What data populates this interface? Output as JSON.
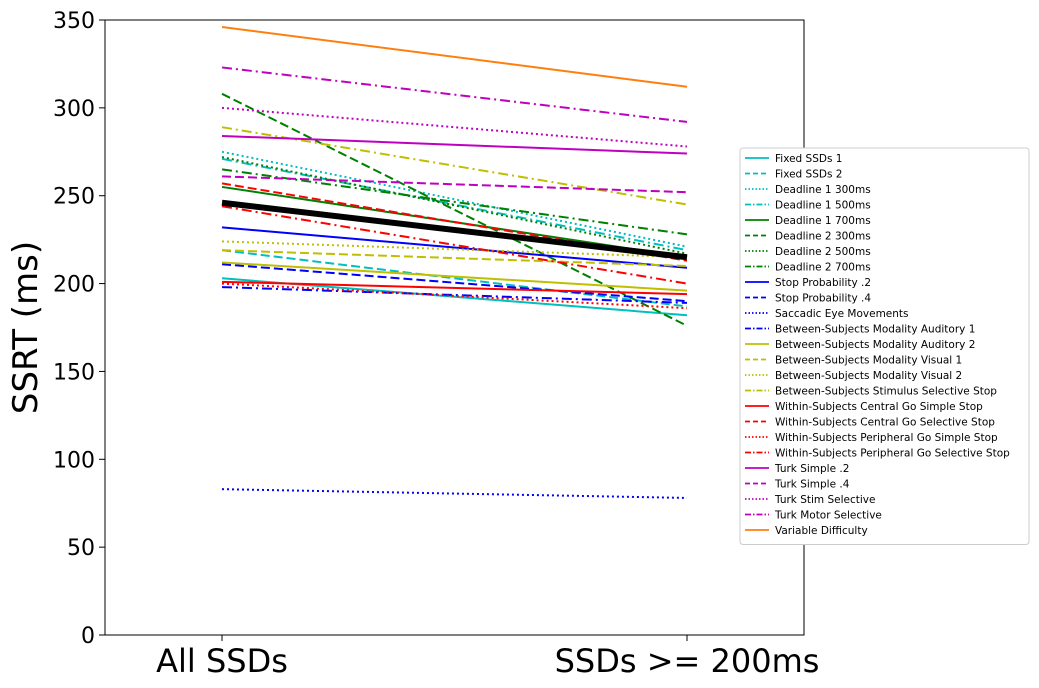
{
  "chart_data": {
    "type": "line",
    "title": "",
    "xlabel": "",
    "ylabel": "SSRT (ms)",
    "categories": [
      "All SSDs",
      "SSDs >= 200ms"
    ],
    "ylim": [
      0,
      350
    ],
    "yticks": [
      "0",
      "50",
      "100",
      "150",
      "200",
      "250",
      "300",
      "350"
    ],
    "grid": false,
    "legend_position": "right",
    "series": [
      {
        "name": "Fixed SSDs 1",
        "values": [
          203,
          182
        ],
        "color": "#00bfbf",
        "dash": "solid"
      },
      {
        "name": "Fixed SSDs 2",
        "values": [
          219,
          187
        ],
        "color": "#00bfbf",
        "dash": "dashed"
      },
      {
        "name": "Deadline 1 300ms",
        "values": [
          275,
          221
        ],
        "color": "#00bfbf",
        "dash": "dotted"
      },
      {
        "name": "Deadline 1 500ms",
        "values": [
          271,
          219
        ],
        "color": "#00bfbf",
        "dash": "dashdot"
      },
      {
        "name": "Deadline 1 700ms",
        "values": [
          255,
          215
        ],
        "color": "#008000",
        "dash": "solid"
      },
      {
        "name": "Deadline 2 300ms",
        "values": [
          308,
          176
        ],
        "color": "#008000",
        "dash": "dashed"
      },
      {
        "name": "Deadline 2 500ms",
        "values": [
          272,
          217
        ],
        "color": "#008000",
        "dash": "dotted"
      },
      {
        "name": "Deadline 2 700ms",
        "values": [
          265,
          228
        ],
        "color": "#008000",
        "dash": "dashdot"
      },
      {
        "name": "Stop Probability .2",
        "values": [
          232,
          209
        ],
        "color": "#0000ff",
        "dash": "solid"
      },
      {
        "name": "Stop Probability .4",
        "values": [
          211,
          190
        ],
        "color": "#0000ff",
        "dash": "dashed"
      },
      {
        "name": "Saccadic Eye Movements",
        "values": [
          83,
          78
        ],
        "color": "#0000ff",
        "dash": "dotted"
      },
      {
        "name": "Between-Subjects Modality Auditory 1",
        "values": [
          198,
          189
        ],
        "color": "#0000ff",
        "dash": "dashdot"
      },
      {
        "name": "Between-Subjects Modality Auditory 2",
        "values": [
          212,
          196
        ],
        "color": "#bfbf00",
        "dash": "solid"
      },
      {
        "name": "Between-Subjects Modality Visual 1",
        "values": [
          219,
          210
        ],
        "color": "#bfbf00",
        "dash": "dashed"
      },
      {
        "name": "Between-Subjects Modality Visual 2",
        "values": [
          224,
          215
        ],
        "color": "#bfbf00",
        "dash": "dotted"
      },
      {
        "name": "Between-Subjects Stimulus Selective Stop",
        "values": [
          289,
          245
        ],
        "color": "#bfbf00",
        "dash": "dashdot"
      },
      {
        "name": "Within-Subjects Central Go Simple Stop",
        "values": [
          201,
          194
        ],
        "color": "#ff0000",
        "dash": "solid"
      },
      {
        "name": "Within-Subjects Central Go Selective Stop",
        "values": [
          257,
          213
        ],
        "color": "#ff0000",
        "dash": "dashed"
      },
      {
        "name": "Within-Subjects Peripheral Go Simple Stop",
        "values": [
          200,
          186
        ],
        "color": "#ff0000",
        "dash": "dotted"
      },
      {
        "name": "Within-Subjects Peripheral Go Selective Stop",
        "values": [
          244,
          200
        ],
        "color": "#ff0000",
        "dash": "dashdot"
      },
      {
        "name": "Turk Simple .2",
        "values": [
          284,
          274
        ],
        "color": "#bf00bf",
        "dash": "solid"
      },
      {
        "name": "Turk Simple .4",
        "values": [
          261,
          252
        ],
        "color": "#bf00bf",
        "dash": "dashed"
      },
      {
        "name": "Turk Stim Selective",
        "values": [
          300,
          278
        ],
        "color": "#bf00bf",
        "dash": "dotted"
      },
      {
        "name": "Turk Motor Selective",
        "values": [
          323,
          292
        ],
        "color": "#bf00bf",
        "dash": "dashdot"
      },
      {
        "name": "Variable Difficulty",
        "values": [
          346,
          312
        ],
        "color": "#ff7f0e",
        "dash": "solid"
      }
    ],
    "mean_line": {
      "values": [
        246,
        215
      ],
      "color": "#000000"
    }
  }
}
